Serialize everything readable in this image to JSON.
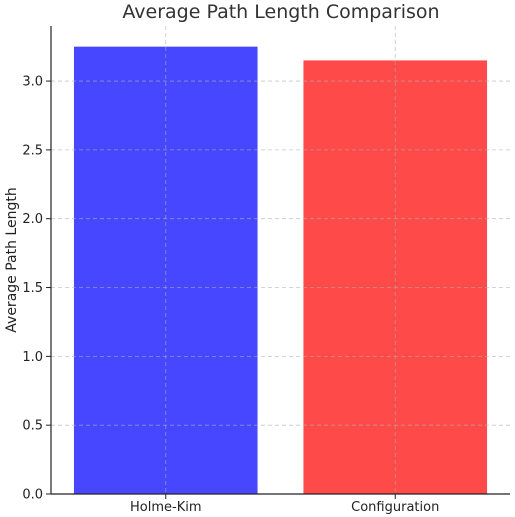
{
  "chart_data": {
    "type": "bar",
    "title": "Average Path Length Comparison",
    "xlabel": "",
    "ylabel": "Average Path Length",
    "categories": [
      "Holme-Kim",
      "Configuration"
    ],
    "values": [
      3.25,
      3.15
    ],
    "colors": [
      "#4747ff",
      "#ff4a4a"
    ],
    "ylim": [
      0,
      3.4
    ],
    "yticks": [
      "0.0",
      "0.5",
      "1.0",
      "1.5",
      "2.0",
      "2.5",
      "3.0"
    ],
    "grid": true,
    "legend": "none"
  }
}
